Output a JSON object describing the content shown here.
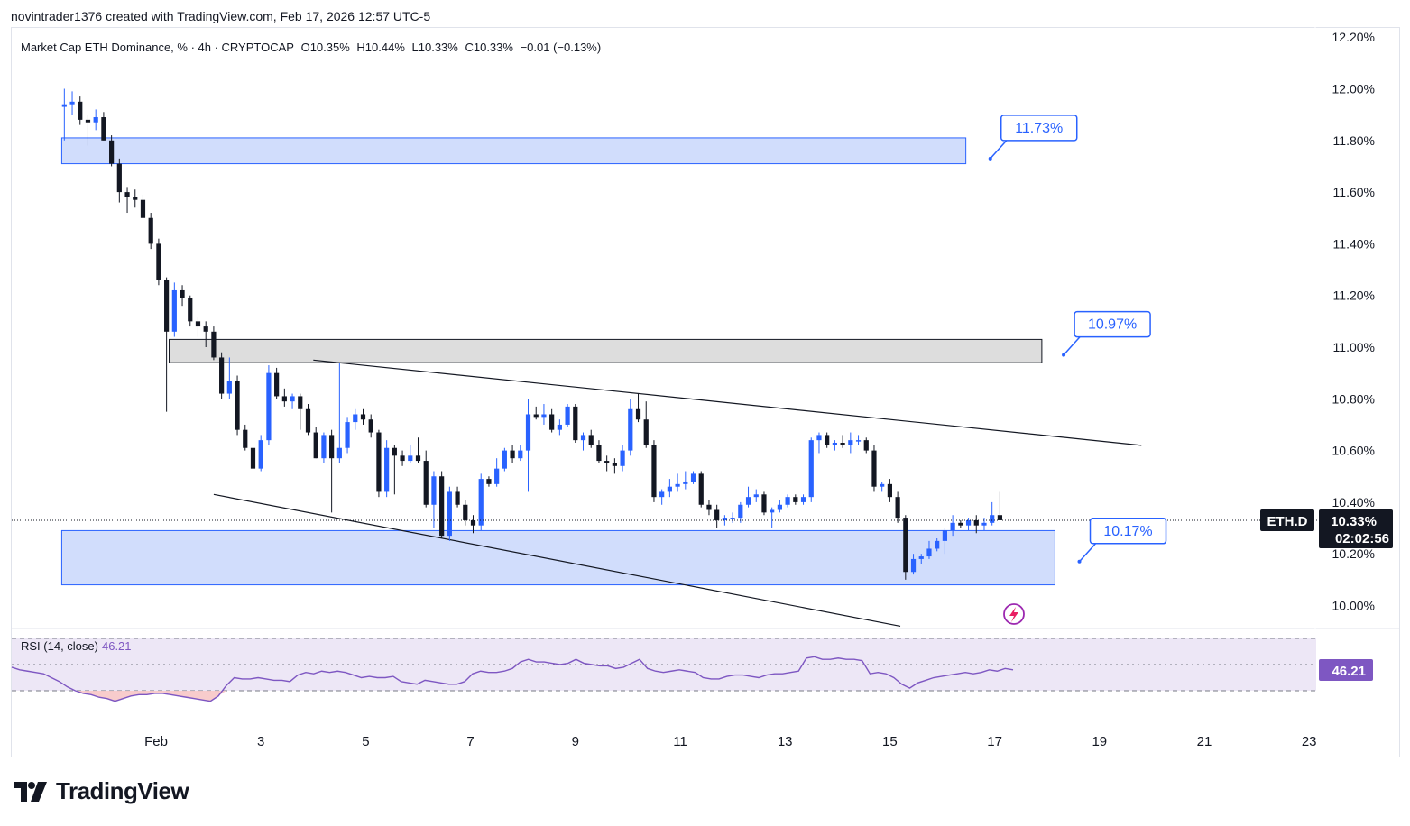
{
  "header": {
    "attribution": "novintrader1376 created with TradingView.com, Feb 17, 2026 12:57 UTC-5"
  },
  "legend": {
    "symbol": "Market Cap ETH Dominance, % · 4h · CRYPTOCAP",
    "open": "O10.35%",
    "high": "H10.44%",
    "low": "L10.33%",
    "close": "C10.33%",
    "change": "−0.01 (−0.13%)"
  },
  "rsi_legend": {
    "label": "RSI (14, close)",
    "value": "46.21"
  },
  "price_badge": {
    "ticker": "ETH.D",
    "price": "10.33%",
    "countdown": "02:02:56"
  },
  "rsi_badge": "46.21",
  "callouts": [
    {
      "label": "11.73%"
    },
    {
      "label": "10.97%"
    },
    {
      "label": "10.17%"
    }
  ],
  "footer": {
    "brand": "TradingView"
  },
  "colors": {
    "up": "#2962ff",
    "down": "#131722",
    "zone_blue": "#d1ddfc",
    "zone_gray": "#d9d9d9",
    "rsi_line": "#7e57c2",
    "rsi_band": "#ede7f6",
    "oversold_fill": "#f7c6c6"
  },
  "chart_data": {
    "type": "candlestick",
    "x_ticks": [
      "Feb",
      "3",
      "5",
      "7",
      "9",
      "11",
      "13",
      "15",
      "17",
      "19",
      "21",
      "23"
    ],
    "y_ticks": [
      "12.20%",
      "12.00%",
      "11.80%",
      "11.60%",
      "11.40%",
      "11.20%",
      "11.00%",
      "10.80%",
      "10.60%",
      "10.40%",
      "10.20%",
      "10.00%"
    ],
    "ylim": [
      9.91,
      12.21
    ],
    "xlim_days": [
      -1.8,
      23
    ],
    "candles": [
      {
        "t": -1.75,
        "o": 11.93,
        "h": 12.0,
        "l": 11.8,
        "c": 11.94
      },
      {
        "t": -1.6,
        "o": 11.94,
        "h": 11.99,
        "l": 11.9,
        "c": 11.95
      },
      {
        "t": -1.45,
        "o": 11.95,
        "h": 11.97,
        "l": 11.86,
        "c": 11.88
      },
      {
        "t": -1.3,
        "o": 11.88,
        "h": 11.9,
        "l": 11.78,
        "c": 11.87
      },
      {
        "t": -1.15,
        "o": 11.87,
        "h": 11.92,
        "l": 11.84,
        "c": 11.89
      },
      {
        "t": -1.0,
        "o": 11.89,
        "h": 11.91,
        "l": 11.8,
        "c": 11.8
      },
      {
        "t": -0.85,
        "o": 11.8,
        "h": 11.82,
        "l": 11.7,
        "c": 11.71
      },
      {
        "t": -0.7,
        "o": 11.71,
        "h": 11.73,
        "l": 11.56,
        "c": 11.6
      },
      {
        "t": -0.55,
        "o": 11.6,
        "h": 11.62,
        "l": 11.52,
        "c": 11.58
      },
      {
        "t": -0.4,
        "o": 11.58,
        "h": 11.61,
        "l": 11.54,
        "c": 11.57
      },
      {
        "t": -0.25,
        "o": 11.57,
        "h": 11.59,
        "l": 11.5,
        "c": 11.5
      },
      {
        "t": -0.1,
        "o": 11.5,
        "h": 11.52,
        "l": 11.38,
        "c": 11.4
      },
      {
        "t": 0.05,
        "o": 11.4,
        "h": 11.42,
        "l": 11.24,
        "c": 11.26
      },
      {
        "t": 0.2,
        "o": 11.26,
        "h": 11.27,
        "l": 10.75,
        "c": 11.06
      },
      {
        "t": 0.35,
        "o": 11.06,
        "h": 11.25,
        "l": 11.04,
        "c": 11.22
      },
      {
        "t": 0.5,
        "o": 11.22,
        "h": 11.24,
        "l": 11.16,
        "c": 11.19
      },
      {
        "t": 0.65,
        "o": 11.19,
        "h": 11.2,
        "l": 11.08,
        "c": 11.1
      },
      {
        "t": 0.8,
        "o": 11.1,
        "h": 11.12,
        "l": 11.04,
        "c": 11.08
      },
      {
        "t": 0.95,
        "o": 11.08,
        "h": 11.1,
        "l": 11.0,
        "c": 11.06
      },
      {
        "t": 1.1,
        "o": 11.06,
        "h": 11.08,
        "l": 10.95,
        "c": 10.96
      },
      {
        "t": 1.25,
        "o": 10.96,
        "h": 10.98,
        "l": 10.8,
        "c": 10.82
      },
      {
        "t": 1.4,
        "o": 10.82,
        "h": 10.96,
        "l": 10.8,
        "c": 10.87
      },
      {
        "t": 1.55,
        "o": 10.87,
        "h": 10.89,
        "l": 10.66,
        "c": 10.68
      },
      {
        "t": 1.7,
        "o": 10.68,
        "h": 10.7,
        "l": 10.6,
        "c": 10.61
      },
      {
        "t": 1.85,
        "o": 10.61,
        "h": 10.65,
        "l": 10.44,
        "c": 10.53
      },
      {
        "t": 2.0,
        "o": 10.53,
        "h": 10.66,
        "l": 10.52,
        "c": 10.64
      },
      {
        "t": 2.15,
        "o": 10.64,
        "h": 10.93,
        "l": 10.62,
        "c": 10.9
      },
      {
        "t": 2.3,
        "o": 10.9,
        "h": 10.92,
        "l": 10.8,
        "c": 10.81
      },
      {
        "t": 2.45,
        "o": 10.81,
        "h": 10.84,
        "l": 10.77,
        "c": 10.79
      },
      {
        "t": 2.6,
        "o": 10.79,
        "h": 10.82,
        "l": 10.76,
        "c": 10.81
      },
      {
        "t": 2.75,
        "o": 10.81,
        "h": 10.82,
        "l": 10.68,
        "c": 10.76
      },
      {
        "t": 2.9,
        "o": 10.76,
        "h": 10.78,
        "l": 10.66,
        "c": 10.67
      },
      {
        "t": 3.05,
        "o": 10.67,
        "h": 10.69,
        "l": 10.57,
        "c": 10.57
      },
      {
        "t": 3.2,
        "o": 10.57,
        "h": 10.67,
        "l": 10.55,
        "c": 10.66
      },
      {
        "t": 3.35,
        "o": 10.66,
        "h": 10.68,
        "l": 10.36,
        "c": 10.57
      },
      {
        "t": 3.5,
        "o": 10.57,
        "h": 10.94,
        "l": 10.55,
        "c": 10.61
      },
      {
        "t": 3.65,
        "o": 10.61,
        "h": 10.73,
        "l": 10.59,
        "c": 10.71
      },
      {
        "t": 3.8,
        "o": 10.71,
        "h": 10.76,
        "l": 10.68,
        "c": 10.74
      },
      {
        "t": 3.95,
        "o": 10.74,
        "h": 10.76,
        "l": 10.7,
        "c": 10.72
      },
      {
        "t": 4.1,
        "o": 10.72,
        "h": 10.74,
        "l": 10.65,
        "c": 10.67
      },
      {
        "t": 4.25,
        "o": 10.67,
        "h": 10.68,
        "l": 10.42,
        "c": 10.44
      },
      {
        "t": 4.4,
        "o": 10.44,
        "h": 10.64,
        "l": 10.42,
        "c": 10.61
      },
      {
        "t": 4.55,
        "o": 10.61,
        "h": 10.62,
        "l": 10.43,
        "c": 10.58
      },
      {
        "t": 4.7,
        "o": 10.58,
        "h": 10.6,
        "l": 10.54,
        "c": 10.56
      },
      {
        "t": 4.85,
        "o": 10.56,
        "h": 10.62,
        "l": 10.55,
        "c": 10.58
      },
      {
        "t": 5.0,
        "o": 10.58,
        "h": 10.65,
        "l": 10.55,
        "c": 10.56
      },
      {
        "t": 5.15,
        "o": 10.56,
        "h": 10.6,
        "l": 10.38,
        "c": 10.39
      },
      {
        "t": 5.3,
        "o": 10.39,
        "h": 10.52,
        "l": 10.3,
        "c": 10.5
      },
      {
        "t": 5.45,
        "o": 10.5,
        "h": 10.52,
        "l": 10.26,
        "c": 10.27
      },
      {
        "t": 5.6,
        "o": 10.27,
        "h": 10.46,
        "l": 10.25,
        "c": 10.44
      },
      {
        "t": 5.75,
        "o": 10.44,
        "h": 10.46,
        "l": 10.38,
        "c": 10.39
      },
      {
        "t": 5.9,
        "o": 10.39,
        "h": 10.41,
        "l": 10.31,
        "c": 10.33
      },
      {
        "t": 6.05,
        "o": 10.33,
        "h": 10.35,
        "l": 10.28,
        "c": 10.31
      },
      {
        "t": 6.2,
        "o": 10.31,
        "h": 10.51,
        "l": 10.29,
        "c": 10.49
      },
      {
        "t": 6.35,
        "o": 10.49,
        "h": 10.5,
        "l": 10.46,
        "c": 10.47
      },
      {
        "t": 6.5,
        "o": 10.47,
        "h": 10.57,
        "l": 10.46,
        "c": 10.53
      },
      {
        "t": 6.65,
        "o": 10.53,
        "h": 10.61,
        "l": 10.52,
        "c": 10.6
      },
      {
        "t": 6.8,
        "o": 10.6,
        "h": 10.62,
        "l": 10.55,
        "c": 10.57
      },
      {
        "t": 6.95,
        "o": 10.57,
        "h": 10.62,
        "l": 10.56,
        "c": 10.6
      },
      {
        "t": 7.1,
        "o": 10.6,
        "h": 10.8,
        "l": 10.44,
        "c": 10.74
      },
      {
        "t": 7.25,
        "o": 10.74,
        "h": 10.77,
        "l": 10.72,
        "c": 10.73
      },
      {
        "t": 7.4,
        "o": 10.73,
        "h": 10.78,
        "l": 10.7,
        "c": 10.74
      },
      {
        "t": 7.55,
        "o": 10.74,
        "h": 10.76,
        "l": 10.67,
        "c": 10.68
      },
      {
        "t": 7.7,
        "o": 10.68,
        "h": 10.72,
        "l": 10.66,
        "c": 10.7
      },
      {
        "t": 7.85,
        "o": 10.7,
        "h": 10.78,
        "l": 10.69,
        "c": 10.77
      },
      {
        "t": 8.0,
        "o": 10.77,
        "h": 10.78,
        "l": 10.63,
        "c": 10.64
      },
      {
        "t": 8.15,
        "o": 10.64,
        "h": 10.67,
        "l": 10.6,
        "c": 10.66
      },
      {
        "t": 8.3,
        "o": 10.66,
        "h": 10.68,
        "l": 10.61,
        "c": 10.62
      },
      {
        "t": 8.45,
        "o": 10.62,
        "h": 10.64,
        "l": 10.55,
        "c": 10.56
      },
      {
        "t": 8.6,
        "o": 10.56,
        "h": 10.58,
        "l": 10.52,
        "c": 10.55
      },
      {
        "t": 8.75,
        "o": 10.55,
        "h": 10.57,
        "l": 10.51,
        "c": 10.54
      },
      {
        "t": 8.9,
        "o": 10.54,
        "h": 10.62,
        "l": 10.52,
        "c": 10.6
      },
      {
        "t": 9.05,
        "o": 10.6,
        "h": 10.8,
        "l": 10.58,
        "c": 10.76
      },
      {
        "t": 9.2,
        "o": 10.76,
        "h": 10.82,
        "l": 10.71,
        "c": 10.72
      },
      {
        "t": 9.35,
        "o": 10.72,
        "h": 10.79,
        "l": 10.61,
        "c": 10.62
      },
      {
        "t": 9.5,
        "o": 10.62,
        "h": 10.64,
        "l": 10.4,
        "c": 10.42
      },
      {
        "t": 9.65,
        "o": 10.42,
        "h": 10.45,
        "l": 10.39,
        "c": 10.44
      },
      {
        "t": 9.8,
        "o": 10.44,
        "h": 10.49,
        "l": 10.42,
        "c": 10.46
      },
      {
        "t": 9.95,
        "o": 10.46,
        "h": 10.51,
        "l": 10.44,
        "c": 10.47
      },
      {
        "t": 10.1,
        "o": 10.47,
        "h": 10.52,
        "l": 10.45,
        "c": 10.48
      },
      {
        "t": 10.25,
        "o": 10.48,
        "h": 10.52,
        "l": 10.47,
        "c": 10.51
      },
      {
        "t": 10.4,
        "o": 10.51,
        "h": 10.52,
        "l": 10.38,
        "c": 10.39
      },
      {
        "t": 10.55,
        "o": 10.39,
        "h": 10.41,
        "l": 10.35,
        "c": 10.37
      },
      {
        "t": 10.7,
        "o": 10.37,
        "h": 10.39,
        "l": 10.3,
        "c": 10.33
      },
      {
        "t": 10.85,
        "o": 10.33,
        "h": 10.35,
        "l": 10.31,
        "c": 10.34
      },
      {
        "t": 11.0,
        "o": 10.34,
        "h": 10.36,
        "l": 10.32,
        "c": 10.34
      },
      {
        "t": 11.15,
        "o": 10.34,
        "h": 10.4,
        "l": 10.32,
        "c": 10.39
      },
      {
        "t": 11.3,
        "o": 10.39,
        "h": 10.46,
        "l": 10.38,
        "c": 10.42
      },
      {
        "t": 11.45,
        "o": 10.42,
        "h": 10.45,
        "l": 10.4,
        "c": 10.43
      },
      {
        "t": 11.6,
        "o": 10.43,
        "h": 10.44,
        "l": 10.35,
        "c": 10.36
      },
      {
        "t": 11.75,
        "o": 10.36,
        "h": 10.38,
        "l": 10.3,
        "c": 10.37
      },
      {
        "t": 11.9,
        "o": 10.37,
        "h": 10.41,
        "l": 10.36,
        "c": 10.39
      },
      {
        "t": 12.05,
        "o": 10.39,
        "h": 10.43,
        "l": 10.38,
        "c": 10.42
      },
      {
        "t": 12.2,
        "o": 10.42,
        "h": 10.43,
        "l": 10.39,
        "c": 10.4
      },
      {
        "t": 12.35,
        "o": 10.4,
        "h": 10.43,
        "l": 10.39,
        "c": 10.42
      },
      {
        "t": 12.5,
        "o": 10.42,
        "h": 10.65,
        "l": 10.4,
        "c": 10.64
      },
      {
        "t": 12.65,
        "o": 10.64,
        "h": 10.67,
        "l": 10.59,
        "c": 10.66
      },
      {
        "t": 12.8,
        "o": 10.66,
        "h": 10.67,
        "l": 10.61,
        "c": 10.62
      },
      {
        "t": 12.95,
        "o": 10.62,
        "h": 10.64,
        "l": 10.6,
        "c": 10.63
      },
      {
        "t": 13.1,
        "o": 10.63,
        "h": 10.66,
        "l": 10.61,
        "c": 10.62
      },
      {
        "t": 13.25,
        "o": 10.62,
        "h": 10.67,
        "l": 10.59,
        "c": 10.64
      },
      {
        "t": 13.4,
        "o": 10.64,
        "h": 10.66,
        "l": 10.62,
        "c": 10.64
      },
      {
        "t": 13.55,
        "o": 10.64,
        "h": 10.65,
        "l": 10.59,
        "c": 10.6
      },
      {
        "t": 13.7,
        "o": 10.6,
        "h": 10.62,
        "l": 10.44,
        "c": 10.46
      },
      {
        "t": 13.85,
        "o": 10.46,
        "h": 10.48,
        "l": 10.44,
        "c": 10.47
      },
      {
        "t": 14.0,
        "o": 10.47,
        "h": 10.49,
        "l": 10.4,
        "c": 10.42
      },
      {
        "t": 14.15,
        "o": 10.42,
        "h": 10.44,
        "l": 10.32,
        "c": 10.34
      },
      {
        "t": 14.3,
        "o": 10.34,
        "h": 10.35,
        "l": 10.1,
        "c": 10.13
      },
      {
        "t": 14.45,
        "o": 10.13,
        "h": 10.2,
        "l": 10.12,
        "c": 10.18
      },
      {
        "t": 14.6,
        "o": 10.18,
        "h": 10.2,
        "l": 10.16,
        "c": 10.19
      },
      {
        "t": 14.75,
        "o": 10.19,
        "h": 10.25,
        "l": 10.18,
        "c": 10.22
      },
      {
        "t": 14.9,
        "o": 10.22,
        "h": 10.26,
        "l": 10.21,
        "c": 10.25
      },
      {
        "t": 15.05,
        "o": 10.25,
        "h": 10.3,
        "l": 10.2,
        "c": 10.29
      },
      {
        "t": 15.2,
        "o": 10.29,
        "h": 10.35,
        "l": 10.27,
        "c": 10.32
      },
      {
        "t": 15.35,
        "o": 10.32,
        "h": 10.33,
        "l": 10.3,
        "c": 10.31
      },
      {
        "t": 15.5,
        "o": 10.31,
        "h": 10.34,
        "l": 10.29,
        "c": 10.33
      },
      {
        "t": 15.65,
        "o": 10.33,
        "h": 10.35,
        "l": 10.28,
        "c": 10.31
      },
      {
        "t": 15.8,
        "o": 10.31,
        "h": 10.34,
        "l": 10.29,
        "c": 10.32
      },
      {
        "t": 15.95,
        "o": 10.32,
        "h": 10.4,
        "l": 10.31,
        "c": 10.35
      },
      {
        "t": 16.1,
        "o": 10.35,
        "h": 10.44,
        "l": 10.33,
        "c": 10.33
      }
    ],
    "last_price": 10.33,
    "zones": [
      {
        "t1": -1.8,
        "t2": 15.45,
        "top": 11.81,
        "bottom": 11.71,
        "color": "blue"
      },
      {
        "t1": 0.25,
        "t2": 16.9,
        "top": 11.03,
        "bottom": 10.94,
        "color": "gray"
      },
      {
        "t1": -1.8,
        "t2": 17.15,
        "top": 10.29,
        "bottom": 10.08,
        "color": "blue"
      }
    ],
    "trendlines": [
      {
        "t1": 3.0,
        "p1": 10.95,
        "t2": 18.8,
        "p2": 10.62
      },
      {
        "t1": 1.1,
        "p1": 10.43,
        "t2": 14.2,
        "p2": 9.92
      }
    ],
    "callout_targets": [
      {
        "t": 15.4,
        "p": 11.73
      },
      {
        "t": 16.8,
        "p": 10.97
      },
      {
        "t": 17.1,
        "p": 10.17
      }
    ],
    "rsi": {
      "period": 14,
      "overbought": 70,
      "oversold": 30,
      "last": 46.21,
      "values": [
        48,
        46,
        45,
        44,
        43,
        40,
        37,
        33,
        30,
        28,
        27,
        25,
        24,
        22,
        24,
        26,
        27,
        27,
        28,
        28,
        27,
        26,
        25,
        24,
        23,
        22,
        26,
        34,
        40,
        39,
        39,
        40,
        39,
        38,
        38,
        37,
        42,
        44,
        43,
        45,
        44,
        45,
        44,
        42,
        40,
        41,
        40,
        40,
        41,
        37,
        36,
        35,
        38,
        37,
        36,
        35,
        35,
        37,
        43,
        45,
        44,
        44,
        45,
        47,
        52,
        54,
        52,
        52,
        51,
        50,
        51,
        54,
        51,
        50,
        49,
        49,
        47,
        48,
        51,
        54,
        47,
        45,
        44,
        45,
        46,
        45,
        44,
        40,
        39,
        39,
        41,
        42,
        42,
        41,
        40,
        42,
        43,
        43,
        44,
        45,
        55,
        56,
        54,
        54,
        55,
        54,
        54,
        53,
        43,
        44,
        43,
        40,
        35,
        32,
        36,
        38,
        40,
        41,
        42,
        43,
        44,
        43,
        44,
        46,
        45,
        47,
        46
      ]
    }
  }
}
